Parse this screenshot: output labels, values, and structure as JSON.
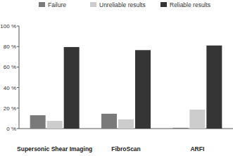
{
  "chart_data": {
    "type": "bar",
    "categories": [
      "Supersonic Shear Imaging",
      "FibroScan",
      "ARFI"
    ],
    "series": [
      {
        "name": "Failure",
        "color": "#7a7a7a",
        "values": [
          13,
          14.5,
          0.8
        ]
      },
      {
        "name": "Unreliable results",
        "color": "#cdcdcd",
        "values": [
          7.5,
          9,
          18.5
        ]
      },
      {
        "name": "Reliable results",
        "color": "#353535",
        "values": [
          79.5,
          76.5,
          81
        ]
      }
    ],
    "ylim": [
      0,
      100
    ],
    "yticks": [
      {
        "value": 0,
        "label": "0 %"
      },
      {
        "value": 20,
        "label": "20 %"
      },
      {
        "value": 40,
        "label": "40 %"
      },
      {
        "value": 60,
        "label": "60 %"
      },
      {
        "value": 80,
        "label": "80 %"
      },
      {
        "value": 100,
        "label": "100 %"
      }
    ],
    "grid": false,
    "legend": "top"
  }
}
